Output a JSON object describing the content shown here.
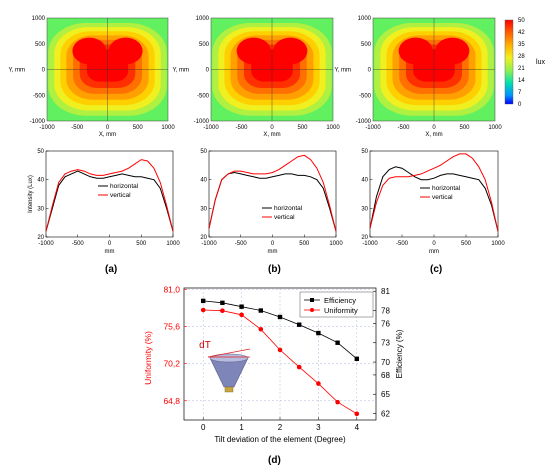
{
  "figure": {
    "panel_labels": [
      "(a)",
      "(b)",
      "(c)",
      "(d)"
    ]
  },
  "colorbar": {
    "ticks": [
      "50",
      "42",
      "35",
      "28",
      "21",
      "14",
      "7",
      "0"
    ],
    "unit": "lux"
  },
  "heatmaps": {
    "xlabel": "X, mm",
    "ylabel": "Y, mm",
    "x_ticks": [
      "-1000",
      "-500",
      "0",
      "500",
      "1000"
    ],
    "y_ticks": [
      "1000",
      "500",
      "0",
      "-500",
      "-1000"
    ],
    "colors": [
      "#0000ff",
      "#00a0ff",
      "#00e0c0",
      "#60f060",
      "#b0f040",
      "#f0f020",
      "#ffd000",
      "#ffa000",
      "#ff7000",
      "#ff3000",
      "#ff0000"
    ]
  },
  "chart_data": [
    {
      "type": "line",
      "panel": "(a)",
      "xlabel": "mm",
      "ylabel": "Intensity (Lux)",
      "xlim": [
        -1000,
        1000
      ],
      "ylim": [
        20,
        50
      ],
      "x_ticks": [
        "-1000",
        "-500",
        "0",
        "500",
        "1000"
      ],
      "y_ticks": [
        "20",
        "30",
        "40",
        "50"
      ],
      "legend": "center",
      "series": [
        {
          "name": "horizontal",
          "color": "#000000",
          "x": [
            -1000,
            -900,
            -800,
            -700,
            -600,
            -500,
            -400,
            -300,
            -200,
            -100,
            0,
            100,
            200,
            300,
            400,
            500,
            600,
            700,
            800,
            900,
            1000
          ],
          "y": [
            22,
            30,
            38,
            41,
            42,
            43,
            42,
            41,
            40.5,
            40.5,
            41,
            41.5,
            42,
            41.5,
            41,
            41,
            40.5,
            40,
            37,
            30,
            22
          ]
        },
        {
          "name": "vertical",
          "color": "#ff0000",
          "x": [
            -1000,
            -900,
            -800,
            -700,
            -600,
            -500,
            -400,
            -300,
            -200,
            -100,
            0,
            100,
            200,
            300,
            400,
            500,
            600,
            700,
            800,
            900,
            1000
          ],
          "y": [
            22,
            31,
            39,
            42,
            43,
            43.5,
            43,
            42,
            41.5,
            41.5,
            42,
            42.5,
            43,
            44,
            45.5,
            47,
            46.5,
            44,
            39,
            31,
            22
          ]
        }
      ]
    },
    {
      "type": "line",
      "panel": "(b)",
      "xlabel": "mm",
      "ylabel": "",
      "xlim": [
        -1000,
        1000
      ],
      "ylim": [
        20,
        50
      ],
      "x_ticks": [
        "-1000",
        "-500",
        "0",
        "500",
        "1000"
      ],
      "y_ticks": [
        "20",
        "30",
        "40",
        "50"
      ],
      "legend": "bottom-center",
      "series": [
        {
          "name": "horizontal",
          "color": "#000000",
          "x": [
            -1000,
            -900,
            -800,
            -700,
            -600,
            -500,
            -400,
            -300,
            -200,
            -100,
            0,
            100,
            200,
            300,
            400,
            500,
            600,
            700,
            800,
            900,
            1000
          ],
          "y": [
            23,
            33,
            40,
            42,
            42.5,
            42,
            41.5,
            41,
            40.5,
            40.5,
            41,
            41.5,
            42,
            42,
            41.5,
            41.5,
            41,
            40,
            37,
            30,
            22
          ]
        },
        {
          "name": "vertical",
          "color": "#ff0000",
          "x": [
            -1000,
            -900,
            -800,
            -700,
            -600,
            -500,
            -400,
            -300,
            -200,
            -100,
            0,
            100,
            200,
            300,
            400,
            500,
            600,
            700,
            800,
            900,
            1000
          ],
          "y": [
            23,
            33,
            40,
            42,
            43,
            43,
            42.5,
            42,
            42,
            42,
            42.5,
            43.5,
            45,
            46.5,
            48,
            48.5,
            47,
            44,
            39,
            31,
            22
          ]
        }
      ]
    },
    {
      "type": "line",
      "panel": "(c)",
      "xlabel": "mm",
      "ylabel": "",
      "xlim": [
        -1000,
        1000
      ],
      "ylim": [
        20,
        50
      ],
      "x_ticks": [
        "-1000",
        "-500",
        "0",
        "500",
        "1000"
      ],
      "y_ticks": [
        "20",
        "30",
        "40",
        "50"
      ],
      "legend": "bottom-center",
      "series": [
        {
          "name": "horizontal",
          "color": "#000000",
          "x": [
            -1000,
            -900,
            -800,
            -700,
            -600,
            -500,
            -400,
            -300,
            -200,
            -100,
            0,
            100,
            200,
            300,
            400,
            500,
            600,
            700,
            800,
            900,
            1000
          ],
          "y": [
            23,
            34,
            41,
            43.5,
            44.5,
            44,
            42.5,
            41,
            40,
            40,
            40.5,
            41.5,
            42,
            42,
            41.5,
            41,
            40.5,
            40,
            37,
            31,
            22
          ]
        },
        {
          "name": "vertical",
          "color": "#ff0000",
          "x": [
            -1000,
            -900,
            -800,
            -700,
            -600,
            -500,
            -400,
            -300,
            -200,
            -100,
            0,
            100,
            200,
            300,
            400,
            500,
            600,
            700,
            800,
            900,
            1000
          ],
          "y": [
            23,
            32,
            38,
            40.5,
            41,
            41,
            41,
            41.5,
            42,
            43,
            44,
            45,
            46.5,
            48,
            49,
            49,
            47.5,
            44.5,
            40,
            32,
            22
          ]
        }
      ]
    },
    {
      "type": "line",
      "panel": "(d)",
      "xlabel": "Tilt deviation of the element (Degree)",
      "xlim": [
        -0.5,
        4.5
      ],
      "x_ticks": [
        "0",
        "1",
        "2",
        "3",
        "4"
      ],
      "left_axis": {
        "label": "Uniformity (%)",
        "color": "#ff0000",
        "lim": [
          62.0,
          81.2
        ],
        "ticks": [
          "81,0",
          "75,6",
          "70,2",
          "64,8"
        ],
        "tick_values": [
          81.0,
          75.6,
          70.2,
          64.8
        ]
      },
      "right_axis": {
        "label": "Efficiency (%)",
        "color": "#000000",
        "lim": [
          61.0,
          81.5
        ],
        "ticks": [
          "81",
          "78",
          "76",
          "73",
          "70",
          "68",
          "65",
          "62"
        ],
        "tick_values": [
          81,
          78,
          76,
          73,
          70,
          68,
          65,
          62
        ]
      },
      "legend": "top-right",
      "annotation": "dT",
      "series": [
        {
          "name": "Efficiency",
          "color": "#000000",
          "marker": "square",
          "axis": "right",
          "x": [
            0,
            0.5,
            1,
            1.5,
            2,
            2.5,
            3,
            3.5,
            4
          ],
          "y": [
            79.5,
            79.2,
            78.6,
            78.0,
            77.0,
            75.8,
            74.5,
            73.0,
            70.5
          ]
        },
        {
          "name": "Uniformity",
          "color": "#ff0000",
          "marker": "circle",
          "axis": "left",
          "x": [
            0,
            0.5,
            1,
            1.5,
            2,
            2.5,
            3,
            3.5,
            4
          ],
          "y": [
            78.0,
            77.9,
            77.3,
            75.2,
            72.2,
            69.7,
            67.3,
            64.6,
            62.9
          ]
        }
      ]
    }
  ]
}
